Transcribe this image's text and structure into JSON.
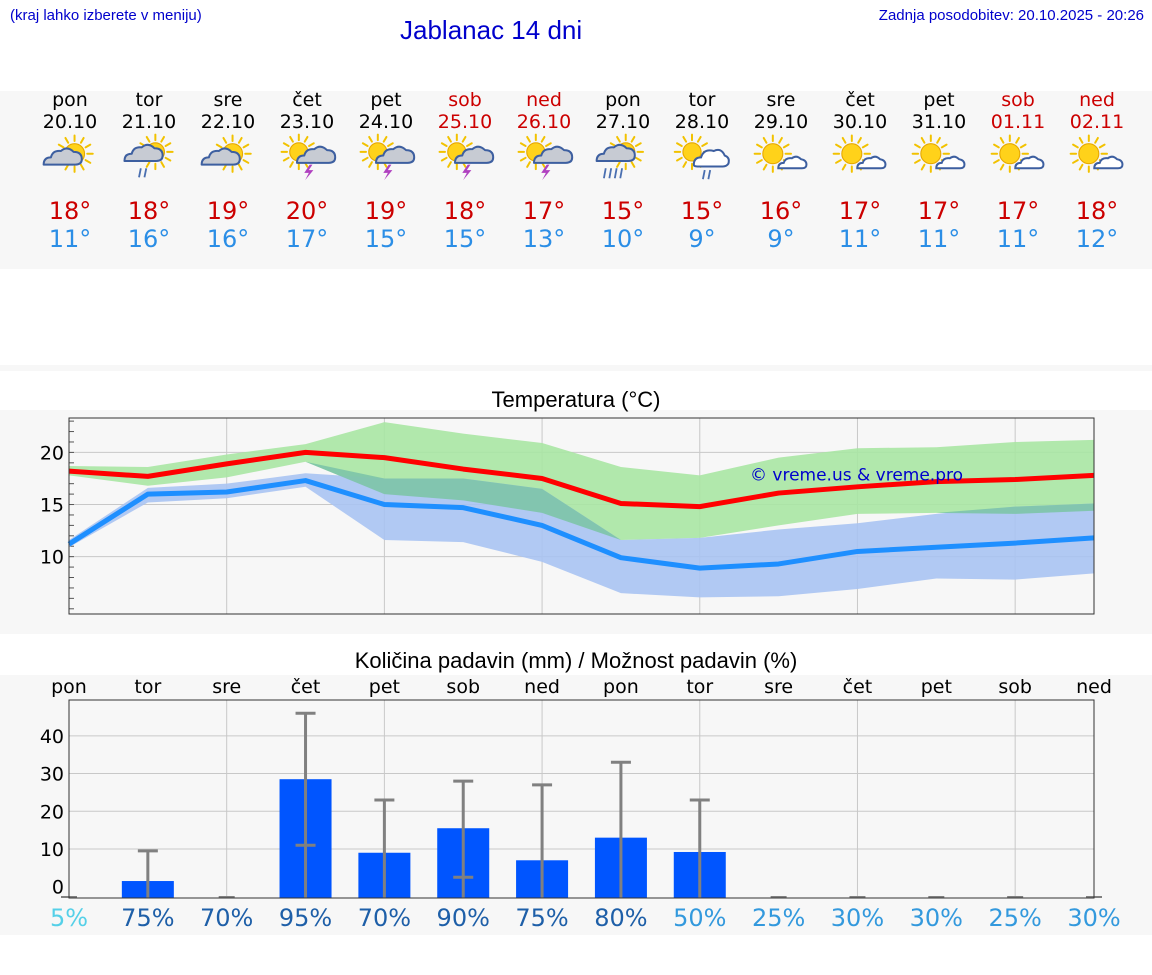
{
  "header": {
    "hint": "(kraj lahko izberete v meniju)",
    "title": "Jablanac 14 dni",
    "updated": "Zadnja posodobitev: 20.10.2025 - 20:26"
  },
  "days": [
    {
      "name": "pon",
      "date": "20.10",
      "weekend": false,
      "icon": "partly-cloudy-icon",
      "tmax": "18°",
      "tmin": "11°"
    },
    {
      "name": "tor",
      "date": "21.10",
      "weekend": false,
      "icon": "cloudy-rain-sun-icon",
      "tmax": "18°",
      "tmin": "16°"
    },
    {
      "name": "sre",
      "date": "22.10",
      "weekend": false,
      "icon": "partly-cloudy-icon",
      "tmax": "19°",
      "tmin": "16°"
    },
    {
      "name": "čet",
      "date": "23.10",
      "weekend": false,
      "icon": "sun-thunder-icon",
      "tmax": "20°",
      "tmin": "17°"
    },
    {
      "name": "pet",
      "date": "24.10",
      "weekend": false,
      "icon": "sun-thunder-icon",
      "tmax": "19°",
      "tmin": "15°"
    },
    {
      "name": "sob",
      "date": "25.10",
      "weekend": true,
      "icon": "sun-thunder-icon",
      "tmax": "18°",
      "tmin": "15°"
    },
    {
      "name": "ned",
      "date": "26.10",
      "weekend": true,
      "icon": "sun-thunder-icon",
      "tmax": "17°",
      "tmin": "13°"
    },
    {
      "name": "pon",
      "date": "27.10",
      "weekend": false,
      "icon": "heavy-rain-sun-icon",
      "tmax": "15°",
      "tmin": "10°"
    },
    {
      "name": "tor",
      "date": "28.10",
      "weekend": false,
      "icon": "sun-cloud-rain-icon",
      "tmax": "15°",
      "tmin": "9°"
    },
    {
      "name": "sre",
      "date": "29.10",
      "weekend": false,
      "icon": "sun-small-cloud-icon",
      "tmax": "16°",
      "tmin": "9°"
    },
    {
      "name": "čet",
      "date": "30.10",
      "weekend": false,
      "icon": "sun-small-cloud-icon",
      "tmax": "17°",
      "tmin": "11°"
    },
    {
      "name": "pet",
      "date": "31.10",
      "weekend": false,
      "icon": "sun-small-cloud-icon",
      "tmax": "17°",
      "tmin": "11°"
    },
    {
      "name": "sob",
      "date": "01.11",
      "weekend": true,
      "icon": "sun-small-cloud-icon",
      "tmax": "17°",
      "tmin": "11°"
    },
    {
      "name": "ned",
      "date": "02.11",
      "weekend": true,
      "icon": "sun-small-cloud-icon",
      "tmax": "18°",
      "tmin": "12°"
    }
  ],
  "colors": {
    "max": "#ff0000",
    "min": "#1e8fff",
    "max_band": "#a8e6a3",
    "min_band": "#a8c3f2",
    "overlap_band": "#7dc4a8",
    "bar": "#0055ff",
    "error": "#808080",
    "weekend": "#cc0000",
    "prob_low": "#55d0e8",
    "prob_mid": "#3399dd",
    "prob_high": "#1e5fa8"
  },
  "chart_data": [
    {
      "type": "line",
      "title": "Temperatura (°C)",
      "watermark": "© vreme.us & vreme.pro",
      "x": [
        "20.10",
        "21.10",
        "22.10",
        "23.10",
        "24.10",
        "25.10",
        "26.10",
        "27.10",
        "28.10",
        "29.10",
        "30.10",
        "31.10",
        "01.11",
        "02.11"
      ],
      "ylim": [
        4.5,
        23.3
      ],
      "yticks": [
        10,
        15,
        20
      ],
      "grid": true,
      "series": [
        {
          "role": "max",
          "values": [
            18.2,
            17.7,
            18.9,
            20.0,
            19.5,
            18.4,
            17.5,
            15.1,
            14.8,
            16.1,
            16.7,
            17.2,
            17.4,
            17.8
          ]
        },
        {
          "role": "min",
          "values": [
            11.2,
            16.0,
            16.2,
            17.3,
            15.0,
            14.7,
            13.0,
            9.9,
            8.9,
            9.3,
            10.5,
            10.9,
            11.3,
            11.8
          ]
        },
        {
          "role": "max_band_upper",
          "values": [
            18.7,
            18.6,
            19.8,
            20.8,
            22.9,
            21.8,
            20.9,
            18.6,
            17.8,
            19.5,
            20.4,
            20.5,
            21.0,
            21.2
          ]
        },
        {
          "role": "max_band_lower",
          "values": [
            17.8,
            16.8,
            17.6,
            19.1,
            16.0,
            15.4,
            14.2,
            11.6,
            11.8,
            13.0,
            14.1,
            14.2,
            14.1,
            14.4
          ]
        },
        {
          "role": "min_band_upper",
          "values": [
            11.6,
            16.6,
            17.0,
            18.0,
            17.5,
            17.5,
            16.5,
            11.6,
            11.8,
            12.6,
            13.2,
            14.1,
            14.8,
            15.1
          ]
        },
        {
          "role": "min_band_lower",
          "values": [
            10.9,
            15.2,
            15.6,
            16.7,
            11.6,
            11.4,
            9.5,
            6.5,
            6.1,
            6.2,
            6.9,
            7.9,
            7.8,
            8.4
          ]
        }
      ]
    },
    {
      "type": "bar",
      "title": "Količina padavin (mm) / Možnost padavin (%)",
      "categories": [
        "pon",
        "tor",
        "sre",
        "čet",
        "pet",
        "sob",
        "ned",
        "pon",
        "tor",
        "sre",
        "čet",
        "pet",
        "sob",
        "ned"
      ],
      "values": [
        0,
        1.5,
        0,
        28.5,
        9,
        15.5,
        7,
        13,
        9.2,
        0,
        0,
        0,
        0,
        0
      ],
      "error_low": [
        0,
        0,
        0,
        11,
        0,
        2.5,
        0,
        0,
        0,
        0,
        0,
        0,
        0,
        0
      ],
      "error_high": [
        0,
        9.5,
        0,
        46,
        23,
        28,
        27,
        33,
        23,
        0,
        0,
        0,
        0,
        0
      ],
      "ylim": [
        -3,
        49.5
      ],
      "yticks": [
        0,
        10,
        20,
        30,
        40
      ],
      "probability": [
        "5%",
        "75%",
        "70%",
        "95%",
        "70%",
        "90%",
        "75%",
        "80%",
        "50%",
        "25%",
        "30%",
        "30%",
        "25%",
        "30%"
      ],
      "probability_level": [
        "low",
        "high",
        "high",
        "high",
        "high",
        "high",
        "high",
        "high",
        "mid",
        "mid",
        "mid",
        "mid",
        "mid",
        "mid"
      ]
    }
  ]
}
